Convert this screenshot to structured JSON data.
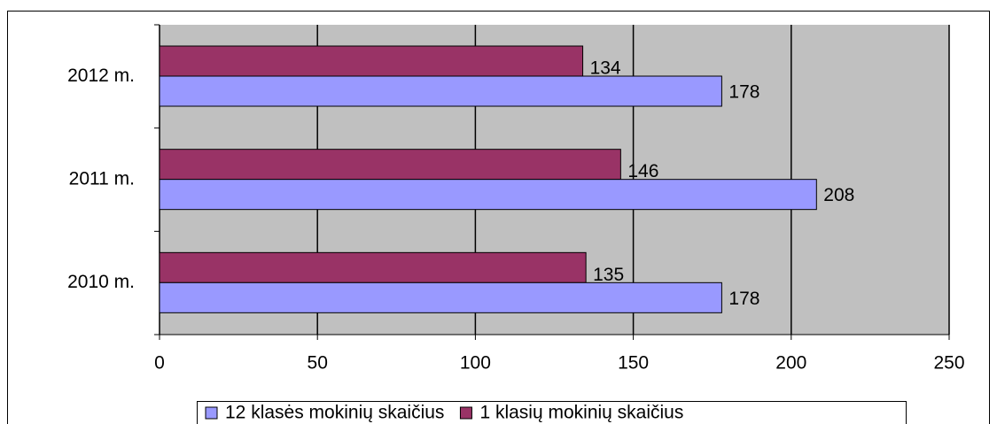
{
  "chart_data": {
    "type": "bar",
    "orientation": "horizontal",
    "categories": [
      "2010 m.",
      "2011 m.",
      "2012 m."
    ],
    "series": [
      {
        "name": "12 klasės mokinių skaičius",
        "color": "#9999ff",
        "values": [
          178,
          208,
          178
        ]
      },
      {
        "name": "1 klasių mokinių skaičius",
        "color": "#993366",
        "values": [
          135,
          146,
          134
        ]
      }
    ],
    "xlim": [
      0,
      250
    ],
    "xticks": [
      0,
      50,
      100,
      150,
      200,
      250
    ],
    "grid": true,
    "plot_background": "#c0c0c0",
    "legend": "bottom"
  }
}
